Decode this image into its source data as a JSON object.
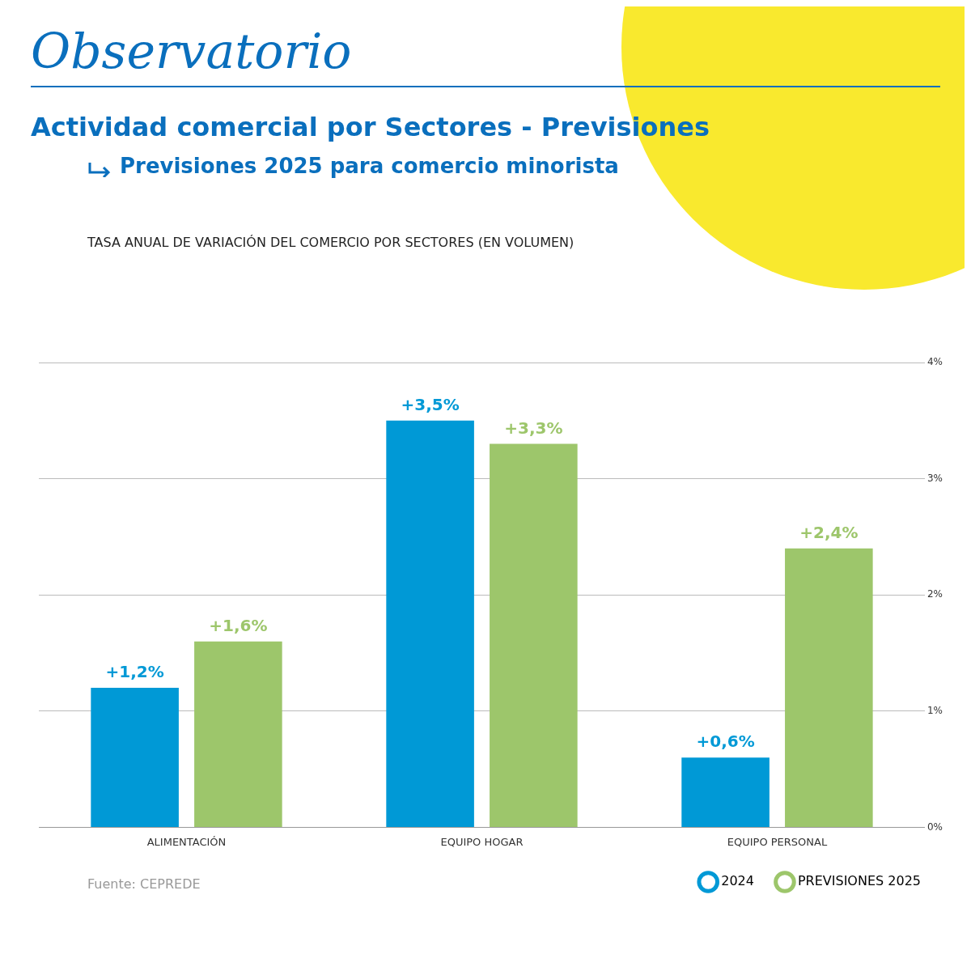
{
  "chart_data": {
    "type": "bar",
    "title": "Observatorio",
    "subtitle": "Actividad comercial por Sectores - Previsiones",
    "annotations": [
      "Previsiones 2025 para comercio minorista",
      "TASA ANUAL DE VARIACIÓN DEL COMERCIO POR SECTORES (EN VOLUMEN)",
      "Fuente: CEPREDE"
    ],
    "categories": [
      "ALIMENTACIÓN",
      "EQUIPO HOGAR",
      "EQUIPO PERSONAL"
    ],
    "series": [
      {
        "name": "2024",
        "color": "#0099d6",
        "values": [
          1.2,
          3.5,
          0.6
        ],
        "value_labels": [
          "+1,2%",
          "+3,5%",
          "+0,6%"
        ]
      },
      {
        "name": "PREVISIONES 2025",
        "color": "#9dc66b",
        "values": [
          1.6,
          3.3,
          2.4
        ],
        "value_labels": [
          "+1,6%",
          "+3,3%",
          "+2,4%"
        ]
      }
    ],
    "ylim": [
      0,
      4
    ],
    "yticks": [
      {
        "value": 0,
        "label": "0%"
      },
      {
        "value": 1,
        "label": "1%"
      },
      {
        "value": 2,
        "label": "2%"
      },
      {
        "value": 3,
        "label": "3%"
      },
      {
        "value": 4,
        "label": "4%"
      }
    ],
    "grid": "y",
    "legend": "bottom right"
  }
}
